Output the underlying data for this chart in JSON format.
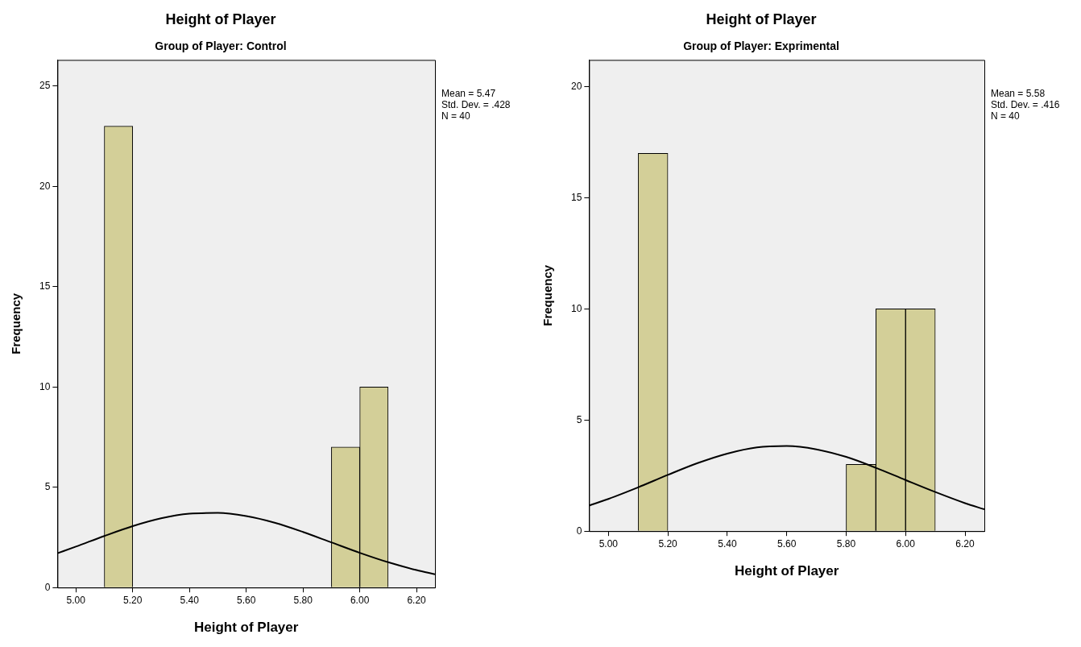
{
  "chart_data": [
    {
      "type": "histogram",
      "title": "Height of Player",
      "subtitle": "Group of Player: Control",
      "xlabel": "Height of Player",
      "ylabel": "Frequency",
      "bins": [
        5.1,
        5.2,
        5.3,
        5.4,
        5.5,
        5.6,
        5.7,
        5.8,
        5.9,
        6.0,
        6.1
      ],
      "values": [
        23,
        0,
        0,
        0,
        0,
        0,
        0,
        0,
        7,
        10
      ],
      "color": "#d3cf98",
      "series": [
        {
          "type": "line",
          "color": "#000000",
          "x": [
            4.935,
            5.0,
            5.1,
            5.2,
            5.3,
            5.4,
            5.5,
            5.6,
            5.7,
            5.8,
            5.9,
            6.0,
            6.1,
            6.2,
            6.265
          ],
          "values": [
            1.71,
            2.04,
            2.57,
            3.06,
            3.45,
            3.68,
            3.72,
            3.56,
            3.23,
            2.77,
            2.25,
            1.73,
            1.26,
            0.87,
            0.66
          ]
        }
      ],
      "xlim": [
        4.935,
        6.265
      ],
      "ylim": [
        0,
        26.3
      ],
      "xticks": [
        {
          "value": 5.0,
          "label": "5.00"
        },
        {
          "value": 5.2,
          "label": "5.20"
        },
        {
          "value": 5.4,
          "label": "5.40"
        },
        {
          "value": 5.6,
          "label": "5.60"
        },
        {
          "value": 5.8,
          "label": "5.80"
        },
        {
          "value": 6.0,
          "label": "6.00"
        },
        {
          "value": 6.2,
          "label": "6.20"
        }
      ],
      "yticks": [
        0,
        5,
        10,
        15,
        20,
        25
      ],
      "grid": false,
      "legend": false,
      "marker": "none",
      "annotations": [
        "Mean = 5.47",
        "Std. Dev. = .428",
        "N = 40"
      ]
    },
    {
      "type": "histogram",
      "title": "Height of Player",
      "subtitle": "Group of Player: Exprimental",
      "xlabel": "Height of Player",
      "ylabel": "Frequency",
      "bins": [
        5.1,
        5.2,
        5.3,
        5.4,
        5.5,
        5.6,
        5.7,
        5.8,
        5.9,
        6.0,
        6.1
      ],
      "values": [
        17,
        0,
        0,
        0,
        0,
        0,
        0,
        3,
        10,
        10
      ],
      "color": "#d3cf98",
      "series": [
        {
          "type": "line",
          "color": "#000000",
          "x": [
            4.935,
            5.0,
            5.1,
            5.2,
            5.3,
            5.4,
            5.5,
            5.6,
            5.7,
            5.8,
            5.9,
            6.0,
            6.1,
            6.2,
            6.265
          ],
          "values": [
            1.15,
            1.45,
            1.97,
            2.53,
            3.06,
            3.49,
            3.77,
            3.83,
            3.68,
            3.34,
            2.85,
            2.3,
            1.76,
            1.26,
            0.98
          ]
        }
      ],
      "xlim": [
        4.935,
        6.265
      ],
      "ylim": [
        0,
        21.2
      ],
      "xticks": [
        {
          "value": 5.0,
          "label": "5.00"
        },
        {
          "value": 5.2,
          "label": "5.20"
        },
        {
          "value": 5.4,
          "label": "5.40"
        },
        {
          "value": 5.6,
          "label": "5.60"
        },
        {
          "value": 5.8,
          "label": "5.80"
        },
        {
          "value": 6.0,
          "label": "6.00"
        },
        {
          "value": 6.2,
          "label": "6.20"
        }
      ],
      "yticks": [
        0,
        5,
        10,
        15,
        20
      ],
      "grid": false,
      "legend": false,
      "marker": "none",
      "annotations": [
        "Mean = 5.58",
        "Std. Dev. = .416",
        "N = 40"
      ]
    }
  ]
}
